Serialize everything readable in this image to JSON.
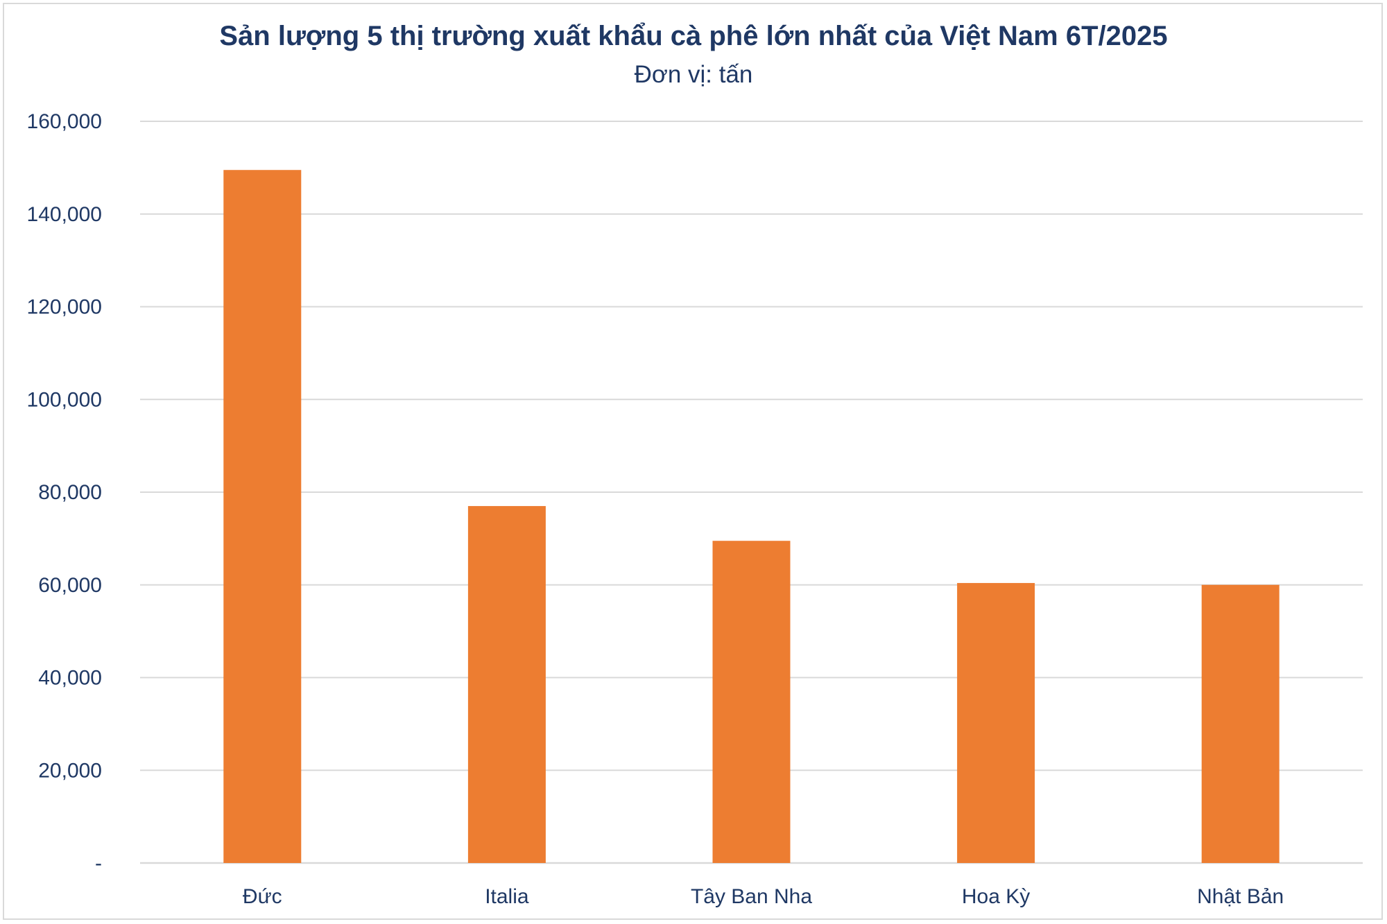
{
  "chart_data": {
    "type": "bar",
    "title": "Sản lượng 5 thị trường xuất khẩu cà phê lớn nhất của Việt Nam 6T/2025",
    "subtitle": "Đơn vị: tấn",
    "categories": [
      "Đức",
      "Italia",
      "Tây Ban Nha",
      "Hoa Kỳ",
      "Nhật Bản"
    ],
    "values": [
      149500,
      77000,
      69500,
      60400,
      60000
    ],
    "ylim": [
      0,
      160000
    ],
    "yticks": [
      0,
      20000,
      40000,
      60000,
      80000,
      100000,
      120000,
      140000,
      160000
    ],
    "ytick_labels": [
      "-",
      "20,000",
      "40,000",
      "60,000",
      "80,000",
      "100,000",
      "120,000",
      "140,000",
      "160,000"
    ],
    "grid": true,
    "bar_color": "#ed7d31",
    "grid_color": "#d9d9d9",
    "text_color": "#1f3864"
  }
}
